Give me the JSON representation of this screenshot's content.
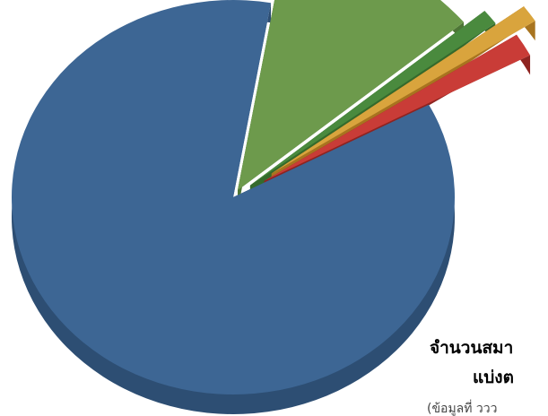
{
  "chart_data": {
    "type": "pie",
    "style": "3d-exploded",
    "title_lines": [
      "จำนวนสมา",
      "แบ่งต",
      "(ข้อมูลที่ ววว"
    ],
    "slices": [
      {
        "value": 0.855,
        "color": "#3d6694",
        "side_color": "#2d4e73"
      },
      {
        "value": 0.112,
        "color": "#6d9a4c",
        "side_color": "#4d7536"
      },
      {
        "value": 0.009,
        "color": "#4a8a3e",
        "side_color": "#356a2c"
      },
      {
        "value": 0.01,
        "color": "#d9a43d",
        "side_color": "#a8741f"
      },
      {
        "value": 0.014,
        "color": "#c93c37",
        "side_color": "#8e2320"
      }
    ],
    "legend": "none"
  }
}
